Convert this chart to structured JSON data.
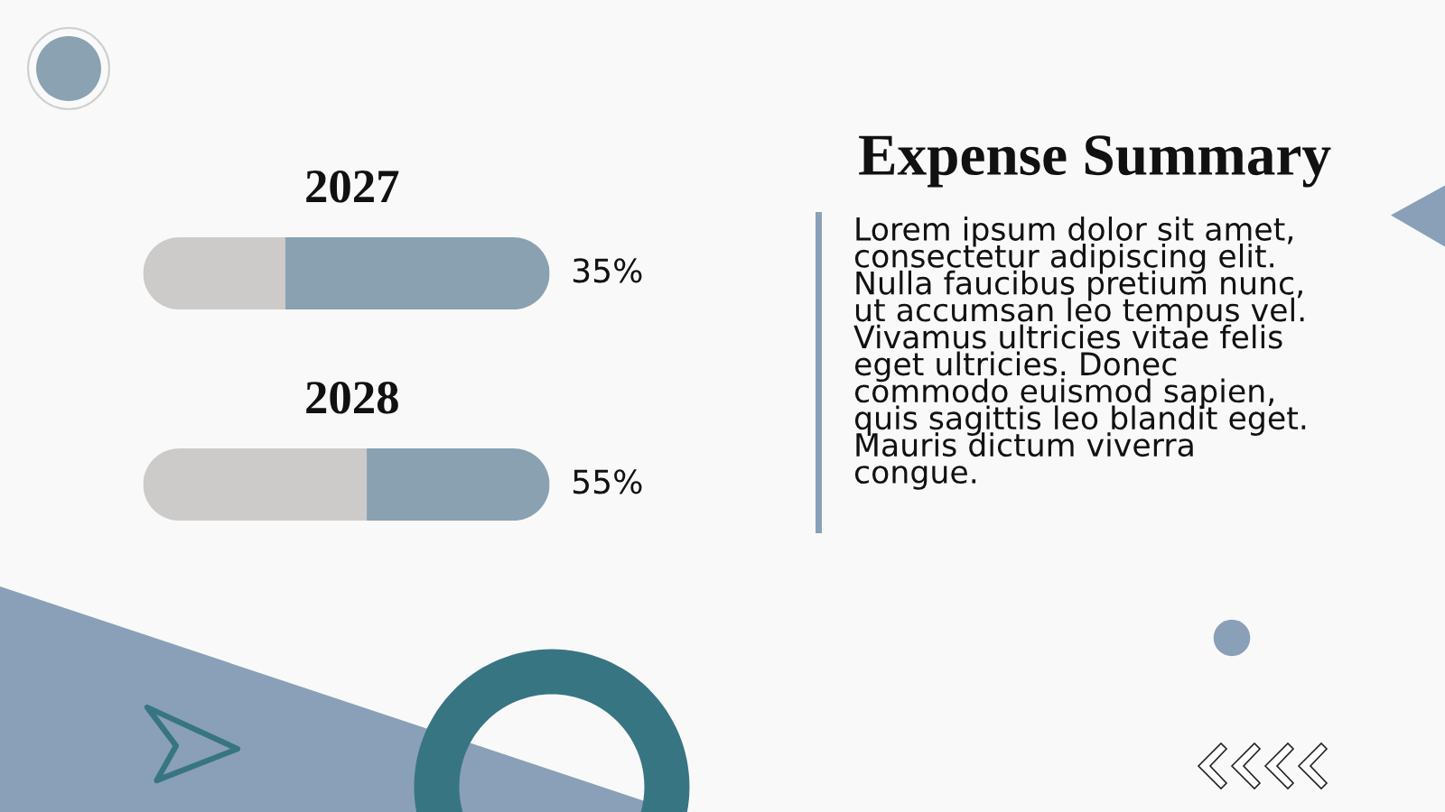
{
  "chart_data": {
    "type": "bar",
    "orientation": "horizontal",
    "stacked": true,
    "title": "Expense Summary",
    "categories": [
      "2027",
      "2028"
    ],
    "series": [
      {
        "color": "#cccbca",
        "values": [
          35,
          55
        ],
        "value_labels": [
          "35%",
          "55%"
        ]
      },
      {
        "color": "#89a1b1",
        "values": [
          65,
          45
        ]
      }
    ],
    "xlim": [
      0,
      100
    ],
    "tick_labels": "y",
    "annotations": [
      "Lorem ipsum dolor sit amet, consectetur adipiscing elit. Nulla faucibus pretium nunc, ut accumsan leo tempus vel. Vivamus ultricies vitae felis eget ultricies. Donec commodo euismod sapien, quis sagittis leo blandit eget. Mauris dictum viverra congue."
    ]
  }
}
